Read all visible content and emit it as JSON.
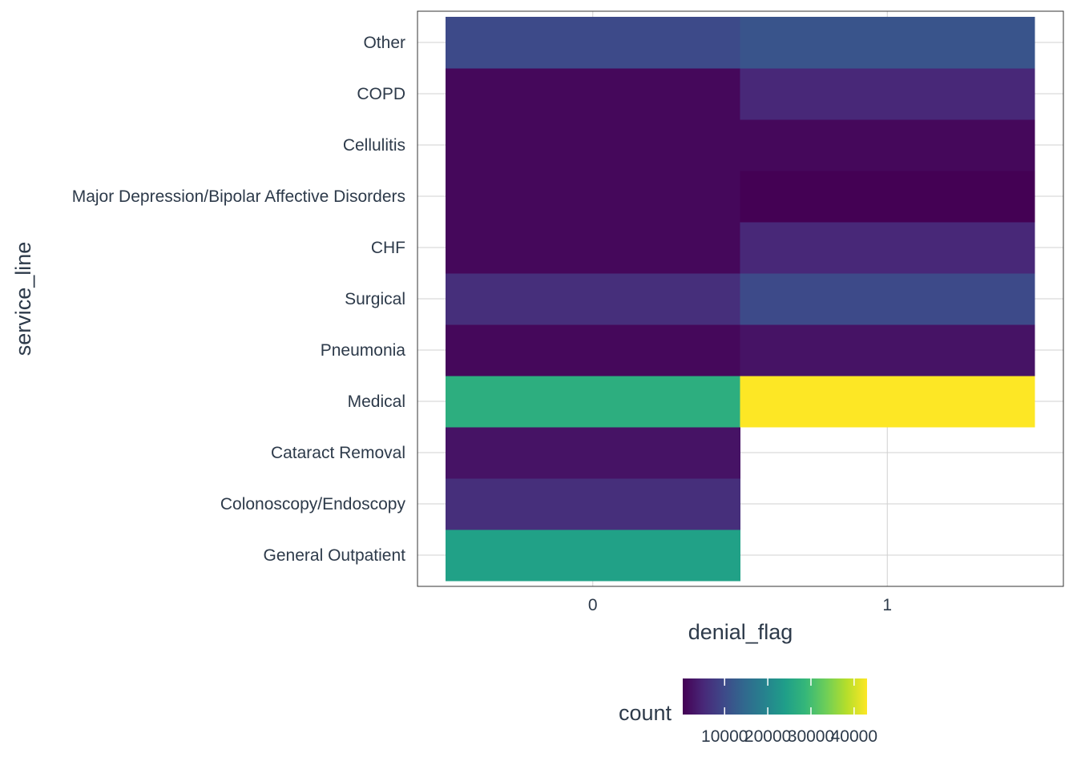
{
  "chart_data": {
    "type": "heatmap",
    "title": "",
    "xlabel": "denial_flag",
    "ylabel": "service_line",
    "x_categories": [
      "0",
      "1"
    ],
    "y_categories": [
      "General Outpatient",
      "Colonoscopy/Endoscopy",
      "Cataract Removal",
      "Medical",
      "Pneumonia",
      "Surgical",
      "CHF",
      "Major Depression/Bipolar Affective Disorders",
      "Cellulitis",
      "COPD",
      "Other"
    ],
    "cells": [
      {
        "y": "General Outpatient",
        "x": "0",
        "value": 24500
      },
      {
        "y": "Colonoscopy/Endoscopy",
        "x": "0",
        "value": 6000
      },
      {
        "y": "Cataract Removal",
        "x": "0",
        "value": 2500
      },
      {
        "y": "Medical",
        "x": "0",
        "value": 27000
      },
      {
        "y": "Medical",
        "x": "1",
        "value": 43000
      },
      {
        "y": "Pneumonia",
        "x": "0",
        "value": 1200
      },
      {
        "y": "Pneumonia",
        "x": "1",
        "value": 2500
      },
      {
        "y": "Surgical",
        "x": "0",
        "value": 6000
      },
      {
        "y": "Surgical",
        "x": "1",
        "value": 10000
      },
      {
        "y": "CHF",
        "x": "0",
        "value": 1200
      },
      {
        "y": "CHF",
        "x": "1",
        "value": 5000
      },
      {
        "y": "Major Depression/Bipolar Affective Disorders",
        "x": "0",
        "value": 1200
      },
      {
        "y": "Major Depression/Bipolar Affective Disorders",
        "x": "1",
        "value": 300
      },
      {
        "y": "Cellulitis",
        "x": "0",
        "value": 1200
      },
      {
        "y": "Cellulitis",
        "x": "1",
        "value": 1200
      },
      {
        "y": "COPD",
        "x": "0",
        "value": 1200
      },
      {
        "y": "COPD",
        "x": "1",
        "value": 5000
      },
      {
        "y": "Other",
        "x": "0",
        "value": 10000
      },
      {
        "y": "Other",
        "x": "1",
        "value": 11500
      }
    ],
    "color_scale": {
      "name": "viridis",
      "min": 300,
      "max": 43000,
      "stops": [
        "#440154",
        "#482878",
        "#3e4989",
        "#31688e",
        "#26828e",
        "#1f9e89",
        "#35b779",
        "#6ece58",
        "#b5de2b",
        "#fde725"
      ]
    },
    "legend": {
      "title": "count",
      "position": "bottom",
      "ticks": [
        10000,
        20000,
        30000,
        40000
      ],
      "tick_labels": [
        "10000",
        "20000",
        "30000",
        "40000"
      ]
    },
    "grid": true
  }
}
